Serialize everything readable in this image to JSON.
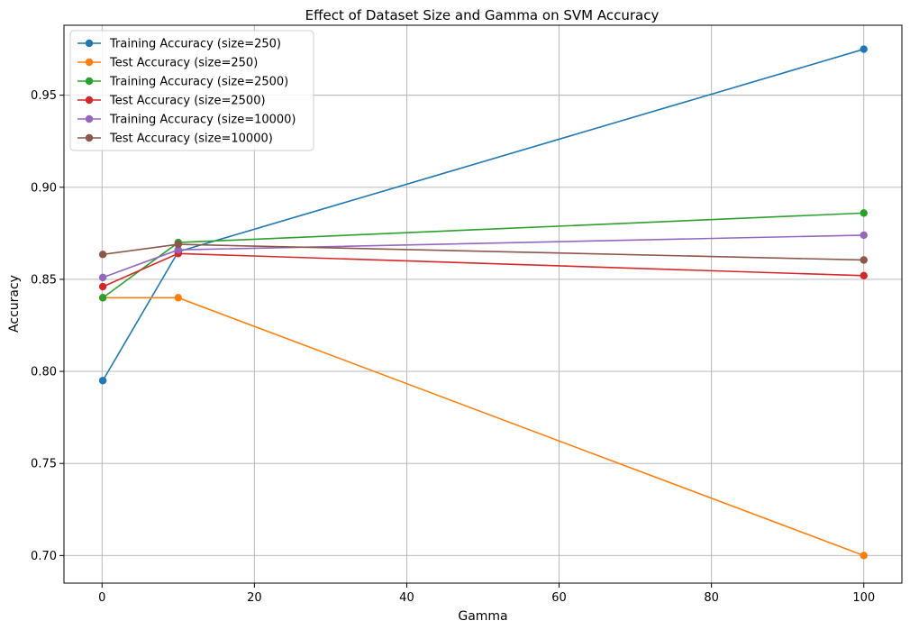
{
  "chart_data": {
    "type": "line",
    "title": "Effect of Dataset Size and Gamma on SVM Accuracy",
    "xlabel": "Gamma",
    "ylabel": "Accuracy",
    "xlim": [
      -5,
      105
    ],
    "ylim": [
      0.685,
      0.988
    ],
    "xticks": [
      0,
      20,
      40,
      60,
      80,
      100
    ],
    "xtick_labels": [
      "0",
      "20",
      "40",
      "60",
      "80",
      "100"
    ],
    "yticks": [
      0.7,
      0.75,
      0.8,
      0.85,
      0.9,
      0.95
    ],
    "ytick_labels": [
      "0.70",
      "0.75",
      "0.80",
      "0.85",
      "0.90",
      "0.95"
    ],
    "grid": true,
    "legend_position": "top-left",
    "x": [
      0.1,
      10,
      100
    ],
    "series": [
      {
        "name": "Training Accuracy (size=250)",
        "color": "#1f77b4",
        "values": [
          0.795,
          0.865,
          0.975
        ]
      },
      {
        "name": "Test Accuracy (size=250)",
        "color": "#ff7f0e",
        "values": [
          0.84,
          0.84,
          0.7
        ]
      },
      {
        "name": "Training Accuracy (size=2500)",
        "color": "#2ca02c",
        "values": [
          0.84,
          0.87,
          0.886
        ]
      },
      {
        "name": "Test Accuracy (size=2500)",
        "color": "#d62728",
        "values": [
          0.846,
          0.864,
          0.852
        ]
      },
      {
        "name": "Training Accuracy (size=10000)",
        "color": "#9467bd",
        "values": [
          0.851,
          0.866,
          0.874
        ]
      },
      {
        "name": "Test Accuracy (size=10000)",
        "color": "#8c564b",
        "values": [
          0.8635,
          0.869,
          0.8605
        ]
      }
    ]
  }
}
